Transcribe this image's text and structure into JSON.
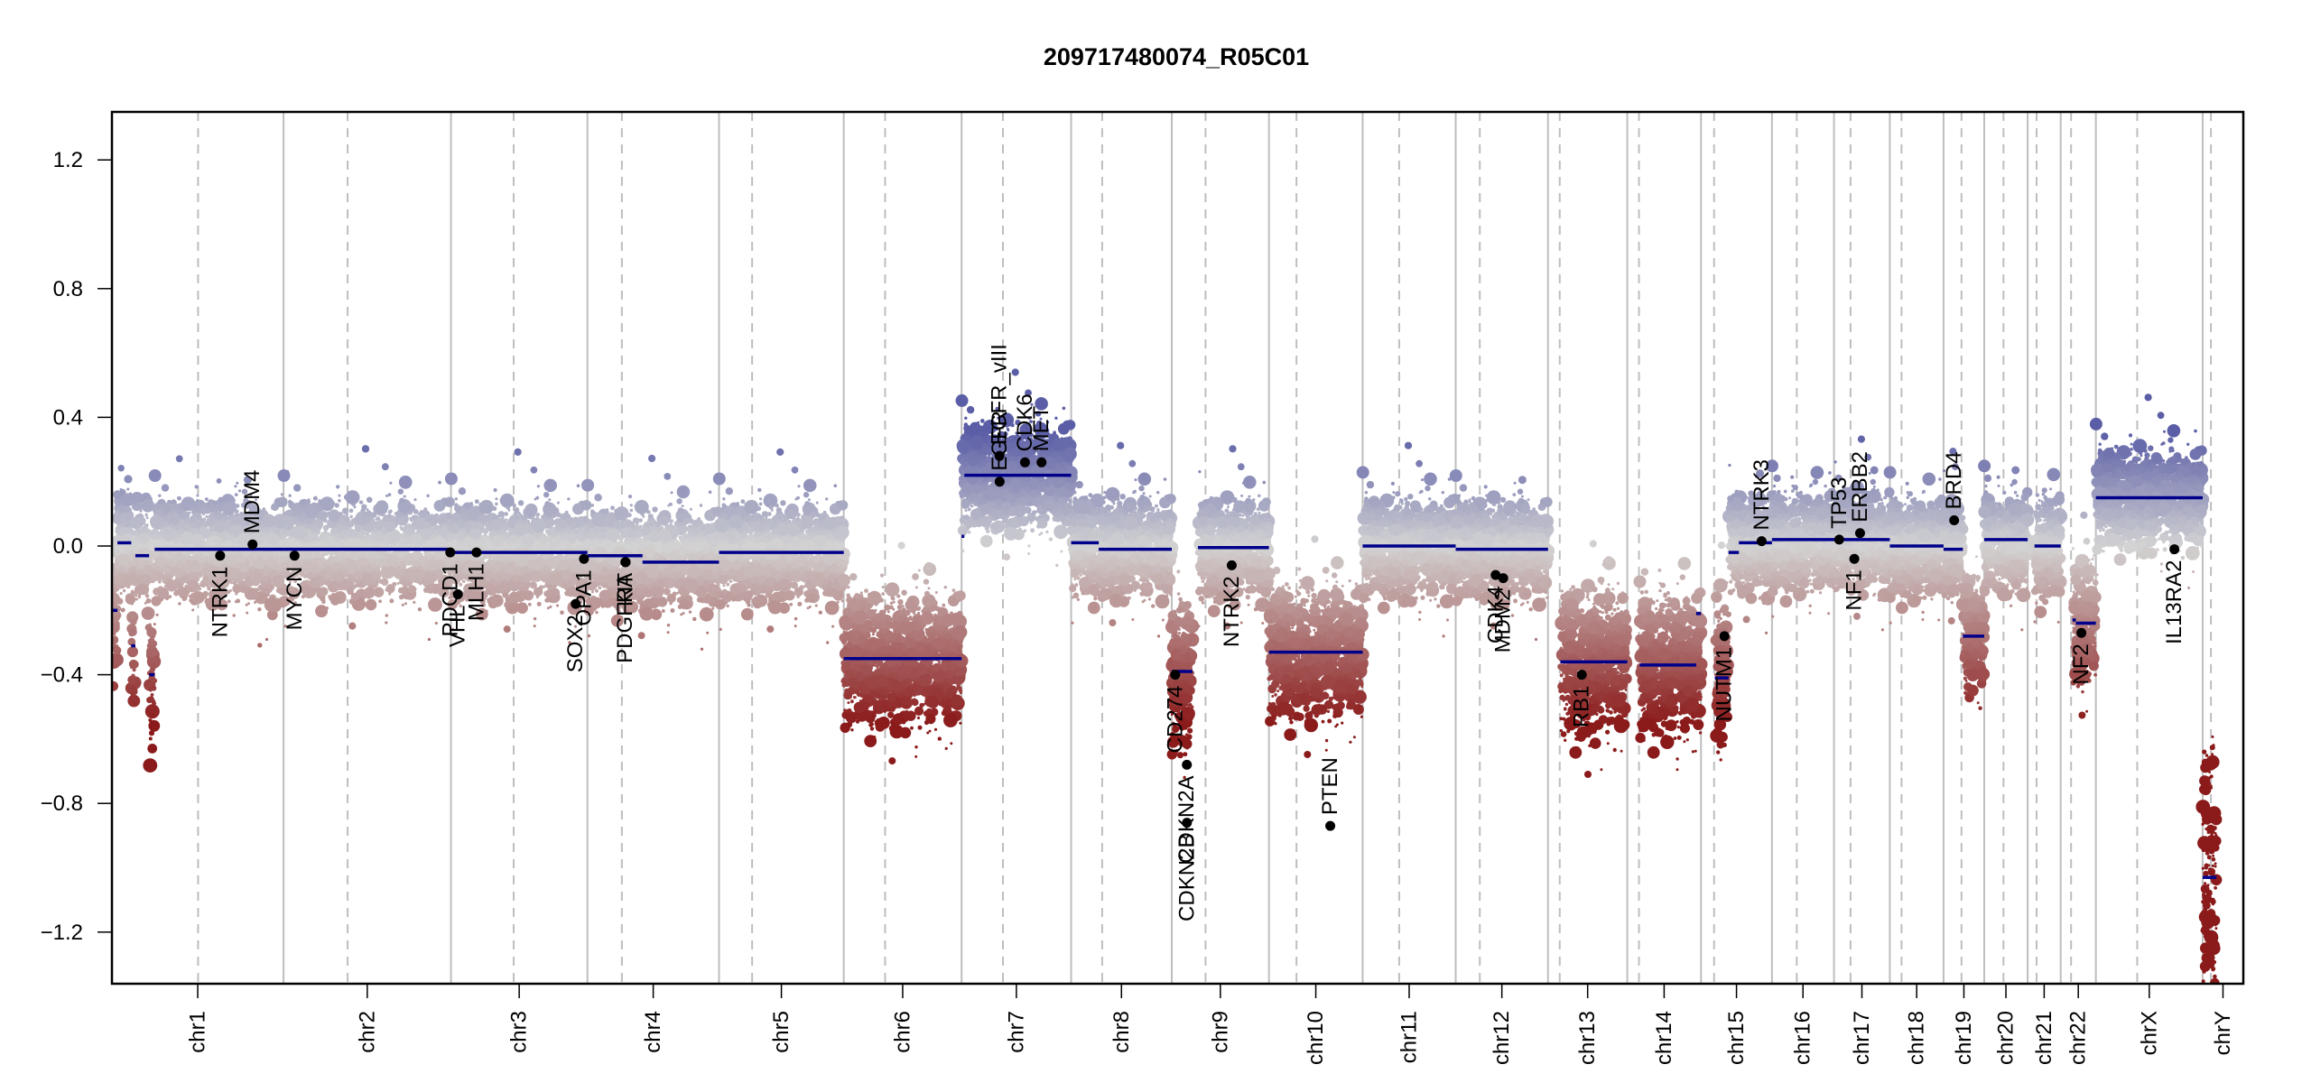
{
  "chart_data": {
    "type": "scatter",
    "title": "209717480074_R05C01",
    "xlabel": "",
    "ylabel": "",
    "ylim": [
      -1.35,
      1.35
    ],
    "yticks": [
      -1.2,
      -0.8,
      -0.4,
      0.0,
      0.4,
      0.8,
      1.2
    ],
    "ytick_labels": [
      "−1.2",
      "−0.8",
      "−0.4",
      "0.0",
      "0.4",
      "0.8",
      "1.2"
    ],
    "grid": false,
    "legend": "none",
    "colors": {
      "gain": "#5b5ea6",
      "neutral": "#d3d3d3",
      "loss": "#8b1a1a",
      "segment": "#00008b",
      "gene_point": "#000000",
      "chrom_boundary": "#bebebe",
      "centromere": "#bebebe"
    },
    "chromosomes": [
      {
        "name": "chr1",
        "length_mb": 249,
        "centromere_mb": 125
      },
      {
        "name": "chr2",
        "length_mb": 243,
        "centromere_mb": 93
      },
      {
        "name": "chr3",
        "length_mb": 198,
        "centromere_mb": 91
      },
      {
        "name": "chr4",
        "length_mb": 191,
        "centromere_mb": 50
      },
      {
        "name": "chr5",
        "length_mb": 181,
        "centromere_mb": 48
      },
      {
        "name": "chr6",
        "length_mb": 171,
        "centromere_mb": 60
      },
      {
        "name": "chr7",
        "length_mb": 159,
        "centromere_mb": 60
      },
      {
        "name": "chr8",
        "length_mb": 146,
        "centromere_mb": 45
      },
      {
        "name": "chr9",
        "length_mb": 141,
        "centromere_mb": 49
      },
      {
        "name": "chr10",
        "length_mb": 136,
        "centromere_mb": 40
      },
      {
        "name": "chr11",
        "length_mb": 135,
        "centromere_mb": 53
      },
      {
        "name": "chr12",
        "length_mb": 134,
        "centromere_mb": 35
      },
      {
        "name": "chr13",
        "length_mb": 115,
        "centromere_mb": 17
      },
      {
        "name": "chr14",
        "length_mb": 107,
        "centromere_mb": 17
      },
      {
        "name": "chr15",
        "length_mb": 103,
        "centromere_mb": 19
      },
      {
        "name": "chr16",
        "length_mb": 90,
        "centromere_mb": 36
      },
      {
        "name": "chr17",
        "length_mb": 81,
        "centromere_mb": 24
      },
      {
        "name": "chr18",
        "length_mb": 78,
        "centromere_mb": 17
      },
      {
        "name": "chr19",
        "length_mb": 59,
        "centromere_mb": 26
      },
      {
        "name": "chr20",
        "length_mb": 63,
        "centromere_mb": 28
      },
      {
        "name": "chr21",
        "length_mb": 48,
        "centromere_mb": 13
      },
      {
        "name": "chr22",
        "length_mb": 51,
        "centromere_mb": 15
      },
      {
        "name": "chrX",
        "length_mb": 155,
        "centromere_mb": 60
      },
      {
        "name": "chrY",
        "length_mb": 59,
        "centromere_mb": 12
      }
    ],
    "segments": [
      {
        "chr": "chr1",
        "start": 0,
        "end": 8,
        "value": -0.2
      },
      {
        "chr": "chr1",
        "start": 8,
        "end": 28,
        "value": 0.01
      },
      {
        "chr": "chr1",
        "start": 28,
        "end": 34,
        "value": -0.31
      },
      {
        "chr": "chr1",
        "start": 34,
        "end": 54,
        "value": -0.03
      },
      {
        "chr": "chr1",
        "start": 54,
        "end": 62,
        "value": -0.4
      },
      {
        "chr": "chr1",
        "start": 62,
        "end": 249,
        "value": -0.01
      },
      {
        "chr": "chr2",
        "start": 0,
        "end": 243,
        "value": -0.01
      },
      {
        "chr": "chr3",
        "start": 0,
        "end": 198,
        "value": -0.02
      },
      {
        "chr": "chr4",
        "start": 0,
        "end": 80,
        "value": -0.03
      },
      {
        "chr": "chr4",
        "start": 80,
        "end": 191,
        "value": -0.05
      },
      {
        "chr": "chr5",
        "start": 0,
        "end": 181,
        "value": -0.02
      },
      {
        "chr": "chr6",
        "start": 0,
        "end": 171,
        "value": -0.35
      },
      {
        "chr": "chr7",
        "start": 0,
        "end": 4,
        "value": 0.03
      },
      {
        "chr": "chr7",
        "start": 4,
        "end": 159,
        "value": 0.22
      },
      {
        "chr": "chr8",
        "start": 0,
        "end": 40,
        "value": 0.01
      },
      {
        "chr": "chr8",
        "start": 40,
        "end": 146,
        "value": -0.01
      },
      {
        "chr": "chr9",
        "start": 0,
        "end": 30,
        "value": -0.39
      },
      {
        "chr": "chr9",
        "start": 38,
        "end": 141,
        "value": -0.005
      },
      {
        "chr": "chr10",
        "start": 0,
        "end": 136,
        "value": -0.33
      },
      {
        "chr": "chr11",
        "start": 0,
        "end": 135,
        "value": 0.0
      },
      {
        "chr": "chr12",
        "start": 0,
        "end": 134,
        "value": -0.01
      },
      {
        "chr": "chr13",
        "start": 18,
        "end": 115,
        "value": -0.36
      },
      {
        "chr": "chr14",
        "start": 18,
        "end": 100,
        "value": -0.37
      },
      {
        "chr": "chr14",
        "start": 100,
        "end": 107,
        "value": -0.21
      },
      {
        "chr": "chr15",
        "start": 20,
        "end": 40,
        "value": -0.41
      },
      {
        "chr": "chr15",
        "start": 40,
        "end": 55,
        "value": -0.02
      },
      {
        "chr": "chr15",
        "start": 55,
        "end": 103,
        "value": 0.01
      },
      {
        "chr": "chr16",
        "start": 0,
        "end": 90,
        "value": 0.02
      },
      {
        "chr": "chr17",
        "start": 0,
        "end": 81,
        "value": 0.02
      },
      {
        "chr": "chr18",
        "start": 0,
        "end": 78,
        "value": 0.0
      },
      {
        "chr": "chr19",
        "start": 0,
        "end": 28,
        "value": -0.01
      },
      {
        "chr": "chr19",
        "start": 28,
        "end": 59,
        "value": -0.28
      },
      {
        "chr": "chr20",
        "start": 0,
        "end": 63,
        "value": 0.02
      },
      {
        "chr": "chr21",
        "start": 10,
        "end": 48,
        "value": 0.0
      },
      {
        "chr": "chr22",
        "start": 17,
        "end": 22,
        "value": -0.23
      },
      {
        "chr": "chr22",
        "start": 22,
        "end": 51,
        "value": -0.24
      },
      {
        "chr": "chrX",
        "start": 0,
        "end": 155,
        "value": 0.15
      },
      {
        "chr": "chrY",
        "start": 0,
        "end": 20,
        "value": -1.03
      }
    ],
    "genes": [
      {
        "name": "NTRK1",
        "chr": "chr1",
        "pos_mb": 157,
        "value": -0.03,
        "label_side": "below"
      },
      {
        "name": "MDM4",
        "chr": "chr1",
        "pos_mb": 204,
        "value": 0.005,
        "label_side": "above"
      },
      {
        "name": "MYCN",
        "chr": "chr2",
        "pos_mb": 16,
        "value": -0.03,
        "label_side": "below"
      },
      {
        "name": "PDCD1",
        "chr": "chr2",
        "pos_mb": 242,
        "value": -0.02,
        "label_side": "below"
      },
      {
        "name": "VHL",
        "chr": "chr3",
        "pos_mb": 10,
        "value": -0.15,
        "label_side": "below"
      },
      {
        "name": "MLH1",
        "chr": "chr3",
        "pos_mb": 37,
        "value": -0.02,
        "label_side": "below"
      },
      {
        "name": "SOX2",
        "chr": "chr3",
        "pos_mb": 181,
        "value": -0.18,
        "label_side": "below"
      },
      {
        "name": "OPA1",
        "chr": "chr3",
        "pos_mb": 193,
        "value": -0.04,
        "label_side": "below"
      },
      {
        "name": "PDGFRA",
        "chr": "chr4",
        "pos_mb": 55,
        "value": -0.05,
        "label_side": "below"
      },
      {
        "name": "KIT",
        "chr": "chr4",
        "pos_mb": 55.5,
        "value": -0.05,
        "label_side": "below"
      },
      {
        "name": "EGFR_vIII",
        "chr": "chr7",
        "pos_mb": 55,
        "value": 0.28,
        "label_side": "above"
      },
      {
        "name": "EGFR",
        "chr": "chr7",
        "pos_mb": 55.2,
        "value": 0.2,
        "label_side": "above"
      },
      {
        "name": "CDK6",
        "chr": "chr7",
        "pos_mb": 92,
        "value": 0.26,
        "label_side": "above"
      },
      {
        "name": "MET",
        "chr": "chr7",
        "pos_mb": 116,
        "value": 0.26,
        "label_side": "above"
      },
      {
        "name": "CD274",
        "chr": "chr9",
        "pos_mb": 5,
        "value": -0.4,
        "label_side": "below"
      },
      {
        "name": "CDKN2A",
        "chr": "chr9",
        "pos_mb": 21.9,
        "value": -0.68,
        "label_side": "below"
      },
      {
        "name": "CDKN2B",
        "chr": "chr9",
        "pos_mb": 22.0,
        "value": -0.86,
        "label_side": "below"
      },
      {
        "name": "NTRK2",
        "chr": "chr9",
        "pos_mb": 87,
        "value": -0.06,
        "label_side": "below"
      },
      {
        "name": "PTEN",
        "chr": "chr10",
        "pos_mb": 89,
        "value": -0.87,
        "label_side": "above"
      },
      {
        "name": "CDK4",
        "chr": "chr12",
        "pos_mb": 58,
        "value": -0.09,
        "label_side": "below"
      },
      {
        "name": "MDM2",
        "chr": "chr12",
        "pos_mb": 69,
        "value": -0.1,
        "label_side": "below"
      },
      {
        "name": "RB1",
        "chr": "chr13",
        "pos_mb": 49,
        "value": -0.4,
        "label_side": "below"
      },
      {
        "name": "NUTM1",
        "chr": "chr15",
        "pos_mb": 34,
        "value": -0.28,
        "label_side": "below"
      },
      {
        "name": "NTRK3",
        "chr": "chr15",
        "pos_mb": 88,
        "value": 0.015,
        "label_side": "above"
      },
      {
        "name": "TP53",
        "chr": "chr17",
        "pos_mb": 7.5,
        "value": 0.02,
        "label_side": "above"
      },
      {
        "name": "NF1",
        "chr": "chr17",
        "pos_mb": 29.5,
        "value": -0.04,
        "label_side": "below"
      },
      {
        "name": "ERBB2",
        "chr": "chr17",
        "pos_mb": 37.8,
        "value": 0.04,
        "label_side": "above"
      },
      {
        "name": "BRD4",
        "chr": "chr19",
        "pos_mb": 15.4,
        "value": 0.08,
        "label_side": "above"
      },
      {
        "name": "NF2",
        "chr": "chr22",
        "pos_mb": 30,
        "value": -0.27,
        "label_side": "below"
      },
      {
        "name": "IL13RA2",
        "chrom": "chrX",
        "chr": "chrX",
        "pos_mb": 114,
        "value": -0.01,
        "label_side": "below"
      }
    ],
    "bin_profile": [
      {
        "chr": "chr1",
        "from": 0,
        "to": 8,
        "mean": -0.2,
        "sd": 0.1
      },
      {
        "chr": "chr1",
        "from": 8,
        "to": 28,
        "mean": 0.01,
        "sd": 0.08
      },
      {
        "chr": "chr1",
        "from": 28,
        "to": 34,
        "mean": -0.31,
        "sd": 0.12
      },
      {
        "chr": "chr1",
        "from": 34,
        "to": 54,
        "mean": -0.03,
        "sd": 0.08
      },
      {
        "chr": "chr1",
        "from": 54,
        "to": 62,
        "mean": -0.4,
        "sd": 0.1
      },
      {
        "chr": "chr1",
        "from": 62,
        "to": 249,
        "mean": -0.01,
        "sd": 0.075
      },
      {
        "chr": "chr2",
        "from": 0,
        "to": 243,
        "mean": -0.01,
        "sd": 0.075
      },
      {
        "chr": "chr3",
        "from": 0,
        "to": 198,
        "mean": -0.02,
        "sd": 0.075
      },
      {
        "chr": "chr4",
        "from": 0,
        "to": 191,
        "mean": -0.04,
        "sd": 0.075
      },
      {
        "chr": "chr5",
        "from": 0,
        "to": 181,
        "mean": -0.02,
        "sd": 0.075
      },
      {
        "chr": "chr6",
        "from": 0,
        "to": 171,
        "mean": -0.35,
        "sd": 0.1
      },
      {
        "chr": "chr7",
        "from": 0,
        "to": 159,
        "mean": 0.22,
        "sd": 0.08
      },
      {
        "chr": "chr8",
        "from": 0,
        "to": 146,
        "mean": 0.0,
        "sd": 0.075
      },
      {
        "chr": "chr9",
        "from": 0,
        "to": 30,
        "mean": -0.39,
        "sd": 0.12
      },
      {
        "chr": "chr9",
        "from": 38,
        "to": 141,
        "mean": -0.01,
        "sd": 0.075
      },
      {
        "chr": "chr10",
        "from": 0,
        "to": 136,
        "mean": -0.33,
        "sd": 0.1
      },
      {
        "chr": "chr11",
        "from": 0,
        "to": 135,
        "mean": 0.0,
        "sd": 0.075
      },
      {
        "chr": "chr12",
        "from": 0,
        "to": 134,
        "mean": -0.01,
        "sd": 0.075
      },
      {
        "chr": "chr13",
        "from": 18,
        "to": 115,
        "mean": -0.36,
        "sd": 0.11
      },
      {
        "chr": "chr14",
        "from": 18,
        "to": 107,
        "mean": -0.36,
        "sd": 0.11
      },
      {
        "chr": "chr15",
        "from": 20,
        "to": 40,
        "mean": -0.38,
        "sd": 0.12
      },
      {
        "chr": "chr15",
        "from": 40,
        "to": 103,
        "mean": 0.01,
        "sd": 0.075
      },
      {
        "chr": "chr16",
        "from": 0,
        "to": 90,
        "mean": 0.02,
        "sd": 0.075
      },
      {
        "chr": "chr17",
        "from": 0,
        "to": 81,
        "mean": 0.02,
        "sd": 0.075
      },
      {
        "chr": "chr18",
        "from": 0,
        "to": 78,
        "mean": 0.0,
        "sd": 0.075
      },
      {
        "chr": "chr19",
        "from": 0,
        "to": 28,
        "mean": -0.01,
        "sd": 0.07
      },
      {
        "chr": "chr19",
        "from": 28,
        "to": 59,
        "mean": -0.28,
        "sd": 0.09
      },
      {
        "chr": "chr20",
        "from": 0,
        "to": 63,
        "mean": 0.02,
        "sd": 0.075
      },
      {
        "chr": "chr21",
        "from": 10,
        "to": 48,
        "mean": 0.0,
        "sd": 0.08
      },
      {
        "chr": "chr22",
        "from": 17,
        "to": 51,
        "mean": -0.24,
        "sd": 0.09
      },
      {
        "chrX": true,
        "chr": "chrX",
        "from": 0,
        "to": 155,
        "mean": 0.15,
        "sd": 0.075
      },
      {
        "chr": "chrY",
        "from": 0,
        "to": 20,
        "mean": -1.03,
        "sd": 0.2
      }
    ]
  }
}
